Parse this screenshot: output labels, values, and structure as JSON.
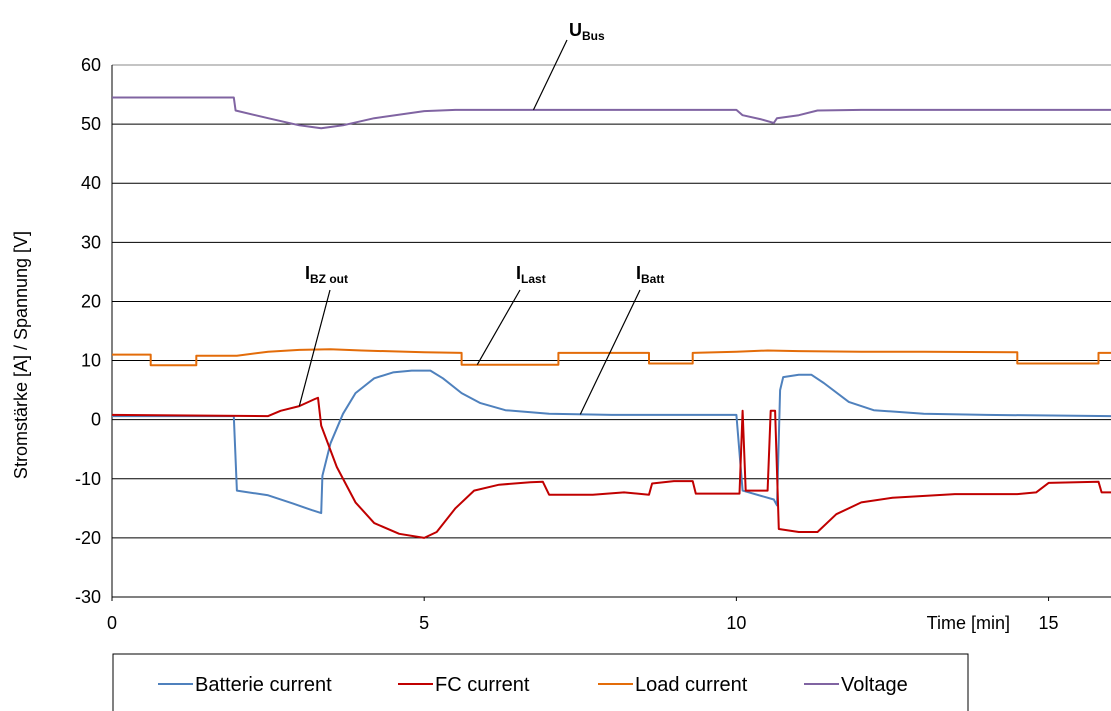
{
  "chart_data": {
    "type": "line",
    "xlabel": "Time [min]",
    "ylabel": "Stromstärke [A] / Spannung [V]",
    "xlim": [
      0,
      16
    ],
    "ylim": [
      -30,
      60
    ],
    "x_ticks": [
      0,
      5,
      10,
      15
    ],
    "y_ticks": [
      -30,
      -20,
      -10,
      0,
      10,
      20,
      30,
      40,
      50,
      60
    ],
    "grid": "horizontal",
    "legend_position": "bottom",
    "series": [
      {
        "name": "Batterie current",
        "color": "#4F81BD",
        "points": [
          [
            0,
            0.6
          ],
          [
            1.95,
            0.6
          ],
          [
            2.0,
            -12.0
          ],
          [
            2.5,
            -12.8
          ],
          [
            2.9,
            -14.2
          ],
          [
            3.2,
            -15.3
          ],
          [
            3.35,
            -15.8
          ],
          [
            3.37,
            -9.5
          ],
          [
            3.5,
            -4.0
          ],
          [
            3.7,
            1.0
          ],
          [
            3.9,
            4.5
          ],
          [
            4.2,
            7.0
          ],
          [
            4.5,
            8.0
          ],
          [
            4.8,
            8.3
          ],
          [
            5.1,
            8.3
          ],
          [
            5.3,
            7.0
          ],
          [
            5.6,
            4.5
          ],
          [
            5.9,
            2.8
          ],
          [
            6.3,
            1.6
          ],
          [
            7.0,
            1.0
          ],
          [
            8.0,
            0.8
          ],
          [
            9.0,
            0.8
          ],
          [
            10.0,
            0.8
          ],
          [
            10.1,
            -12.0
          ],
          [
            10.6,
            -13.5
          ],
          [
            10.65,
            -14.5
          ],
          [
            10.7,
            5.0
          ],
          [
            10.75,
            7.2
          ],
          [
            11.0,
            7.6
          ],
          [
            11.2,
            7.6
          ],
          [
            11.4,
            6.2
          ],
          [
            11.8,
            3.0
          ],
          [
            12.2,
            1.6
          ],
          [
            13.0,
            1.0
          ],
          [
            14.0,
            0.8
          ],
          [
            16.0,
            0.6
          ]
        ]
      },
      {
        "name": "FC current",
        "color": "#C00000",
        "points": [
          [
            0,
            0.8
          ],
          [
            2.5,
            0.6
          ],
          [
            2.7,
            1.5
          ],
          [
            3.0,
            2.3
          ],
          [
            3.25,
            3.5
          ],
          [
            3.3,
            3.7
          ],
          [
            3.35,
            -1.0
          ],
          [
            3.6,
            -8.0
          ],
          [
            3.9,
            -14.0
          ],
          [
            4.2,
            -17.5
          ],
          [
            4.6,
            -19.3
          ],
          [
            5.0,
            -20.0
          ],
          [
            5.2,
            -19.0
          ],
          [
            5.5,
            -15.0
          ],
          [
            5.8,
            -12.0
          ],
          [
            6.2,
            -11.0
          ],
          [
            6.7,
            -10.6
          ],
          [
            6.9,
            -10.5
          ],
          [
            7.0,
            -12.7
          ],
          [
            7.7,
            -12.7
          ],
          [
            8.2,
            -12.3
          ],
          [
            8.6,
            -12.7
          ],
          [
            8.65,
            -10.8
          ],
          [
            9.0,
            -10.4
          ],
          [
            9.3,
            -10.4
          ],
          [
            9.35,
            -12.5
          ],
          [
            10.05,
            -12.5
          ],
          [
            10.1,
            1.5
          ],
          [
            10.15,
            -12.0
          ],
          [
            10.5,
            -12.0
          ],
          [
            10.55,
            1.5
          ],
          [
            10.62,
            1.5
          ],
          [
            10.68,
            -18.5
          ],
          [
            11.0,
            -19.0
          ],
          [
            11.3,
            -19.0
          ],
          [
            11.6,
            -16.0
          ],
          [
            12.0,
            -14.0
          ],
          [
            12.5,
            -13.2
          ],
          [
            13.5,
            -12.6
          ],
          [
            14.5,
            -12.6
          ],
          [
            14.8,
            -12.3
          ],
          [
            15.0,
            -10.7
          ],
          [
            15.8,
            -10.5
          ],
          [
            15.85,
            -12.3
          ],
          [
            16.0,
            -12.3
          ]
        ]
      },
      {
        "name": "Load current",
        "color": "#E36C09",
        "points": [
          [
            0,
            11.0
          ],
          [
            0.62,
            11.0
          ],
          [
            0.62,
            9.2
          ],
          [
            1.35,
            9.2
          ],
          [
            1.35,
            10.8
          ],
          [
            2.0,
            10.8
          ],
          [
            2.5,
            11.5
          ],
          [
            3.0,
            11.8
          ],
          [
            3.5,
            11.9
          ],
          [
            4.0,
            11.7
          ],
          [
            5.0,
            11.4
          ],
          [
            5.6,
            11.3
          ],
          [
            5.6,
            9.3
          ],
          [
            7.15,
            9.3
          ],
          [
            7.15,
            11.3
          ],
          [
            8.6,
            11.3
          ],
          [
            8.6,
            9.5
          ],
          [
            9.3,
            9.5
          ],
          [
            9.3,
            11.3
          ],
          [
            10.0,
            11.5
          ],
          [
            10.5,
            11.7
          ],
          [
            11.0,
            11.6
          ],
          [
            12.0,
            11.5
          ],
          [
            13.0,
            11.5
          ],
          [
            14.5,
            11.4
          ],
          [
            14.5,
            9.5
          ],
          [
            15.8,
            9.5
          ],
          [
            15.8,
            11.3
          ],
          [
            16.0,
            11.3
          ]
        ]
      },
      {
        "name": "Voltage",
        "color": "#8064A2",
        "points": [
          [
            0,
            54.5
          ],
          [
            1.95,
            54.5
          ],
          [
            1.98,
            52.3
          ],
          [
            2.5,
            51.0
          ],
          [
            3.0,
            49.8
          ],
          [
            3.35,
            49.3
          ],
          [
            3.7,
            49.8
          ],
          [
            4.2,
            51.0
          ],
          [
            5.0,
            52.2
          ],
          [
            5.5,
            52.4
          ],
          [
            6.0,
            52.4
          ],
          [
            7.0,
            52.4
          ],
          [
            8.0,
            52.4
          ],
          [
            9.0,
            52.4
          ],
          [
            10.0,
            52.4
          ],
          [
            10.1,
            51.5
          ],
          [
            10.4,
            50.8
          ],
          [
            10.6,
            50.2
          ],
          [
            10.65,
            51.0
          ],
          [
            11.0,
            51.5
          ],
          [
            11.3,
            52.3
          ],
          [
            12.0,
            52.4
          ],
          [
            13.0,
            52.4
          ],
          [
            14.0,
            52.4
          ],
          [
            15.0,
            52.4
          ],
          [
            16.0,
            52.4
          ]
        ]
      }
    ],
    "annotations": [
      {
        "main": "U",
        "sub": "Bus",
        "series": "Voltage",
        "target": [
          6.75,
          52.4
        ],
        "label_at": [
          15.6,
          62.5
        ]
      },
      {
        "main": "I",
        "sub": "BZ out",
        "series": "FC current",
        "target": [
          3.0,
          2.3
        ],
        "label_at": [
          7.1,
          22.7
        ]
      },
      {
        "main": "I",
        "sub": "Last",
        "series": "Load current",
        "target": [
          5.85,
          9.3
        ],
        "label_at": [
          15.7,
          22.7
        ]
      },
      {
        "main": "I",
        "sub": "Batt",
        "series": "Batterie current",
        "target": [
          7.5,
          0.9
        ],
        "label_at": [
          20.0,
          22.7
        ]
      }
    ]
  }
}
